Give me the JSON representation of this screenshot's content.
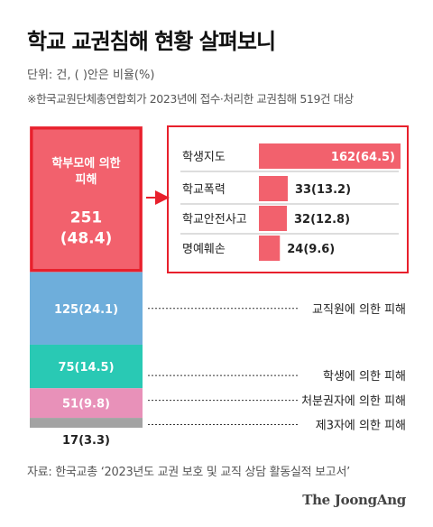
{
  "header": {
    "title": "학교 교권침해 현황 살펴보니",
    "unit": "단위: 건, ( )안은 비율(%)",
    "note": "※한국교원단체총연합회가 2023년에 접수·처리한 교권침해 519건 대상"
  },
  "footer": {
    "source": "자료: 한국교총 ‘2023년도 교권 보호 및 교직 상담 활동실적 보고서’",
    "brand": "The JoongAng"
  },
  "colors": {
    "parents": "#f2616d",
    "staff": "#6eaedb",
    "students": "#29c9b4",
    "admin": "#e891b9",
    "third": "#a3a3a3",
    "accent_border": "#e8202c",
    "detail_bar": "#f2616d"
  },
  "chart_data": [
    {
      "type": "bar",
      "orientation": "stacked-vertical",
      "title": "",
      "total": 519,
      "series": [
        {
          "name": "학부모에 의한 피해",
          "value": 251,
          "percent": 48.4,
          "label": "251\n(48.4)"
        },
        {
          "name": "교직원에 의한 피해",
          "value": 125,
          "percent": 24.1,
          "label": "125(24.1)"
        },
        {
          "name": "학생에 의한 피해",
          "value": 75,
          "percent": 14.5,
          "label": "75(14.5)"
        },
        {
          "name": "처분권자에 의한 피해",
          "value": 51,
          "percent": 9.8,
          "label": "51(9.8)"
        },
        {
          "name": "제3자에 의한 피해",
          "value": 17,
          "percent": 3.3,
          "label": "17(3.3)"
        }
      ]
    },
    {
      "type": "bar",
      "orientation": "horizontal",
      "title": "",
      "parent": "학부모에 의한 피해",
      "categories": [
        "학생지도",
        "학교폭력",
        "학교안전사고",
        "명예훼손"
      ],
      "values": [
        162,
        33,
        32,
        24
      ],
      "percents": [
        64.5,
        13.2,
        12.8,
        9.6
      ],
      "labels": [
        "162(64.5)",
        "33(13.2)",
        "32(12.8)",
        "24(9.6)"
      ]
    }
  ]
}
